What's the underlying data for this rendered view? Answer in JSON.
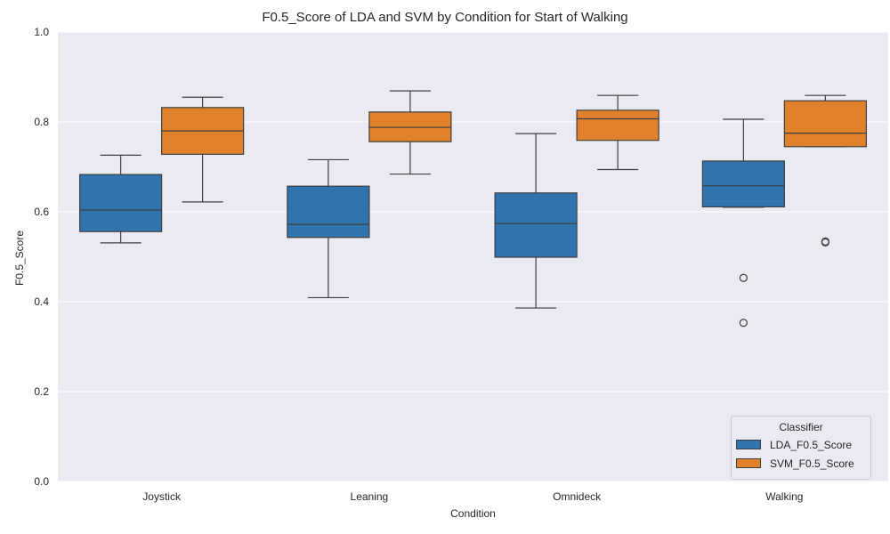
{
  "chart_data": {
    "type": "box",
    "title": "F0.5_Score of LDA and SVM by Condition for Start of Walking",
    "xlabel": "Condition",
    "ylabel": "F0.5_Score",
    "ylim": [
      0.0,
      1.0
    ],
    "yticks": [
      "0.0",
      "0.2",
      "0.4",
      "0.6",
      "0.8",
      "1.0"
    ],
    "grid": true,
    "legend": {
      "title": "Classifier",
      "placement": "bottom-right"
    },
    "categories": [
      "Joystick",
      "Leaning",
      "Omnideck",
      "Walking"
    ],
    "series": [
      {
        "name": "LDA_F0.5_Score",
        "color": "#2f74ae",
        "boxes": [
          {
            "whisker_low": 0.531,
            "q1": 0.556,
            "median": 0.604,
            "q3": 0.683,
            "whisker_high": 0.726,
            "outliers": []
          },
          {
            "whisker_low": 0.409,
            "q1": 0.543,
            "median": 0.572,
            "q3": 0.657,
            "whisker_high": 0.716,
            "outliers": []
          },
          {
            "whisker_low": 0.386,
            "q1": 0.499,
            "median": 0.574,
            "q3": 0.642,
            "whisker_high": 0.774,
            "outliers": []
          },
          {
            "whisker_low": 0.61,
            "q1": 0.611,
            "median": 0.658,
            "q3": 0.713,
            "whisker_high": 0.806,
            "outliers": [
              0.453,
              0.353
            ]
          }
        ]
      },
      {
        "name": "SVM_F0.5_Score",
        "color": "#e1812c",
        "boxes": [
          {
            "whisker_low": 0.622,
            "q1": 0.728,
            "median": 0.78,
            "q3": 0.832,
            "whisker_high": 0.855,
            "outliers": []
          },
          {
            "whisker_low": 0.684,
            "q1": 0.756,
            "median": 0.788,
            "q3": 0.822,
            "whisker_high": 0.869,
            "outliers": []
          },
          {
            "whisker_low": 0.694,
            "q1": 0.759,
            "median": 0.807,
            "q3": 0.826,
            "whisker_high": 0.859,
            "outliers": []
          },
          {
            "whisker_low": 0.745,
            "q1": 0.745,
            "median": 0.775,
            "q3": 0.847,
            "whisker_high": 0.859,
            "outliers": [
              0.534,
              0.532
            ]
          }
        ]
      }
    ]
  }
}
